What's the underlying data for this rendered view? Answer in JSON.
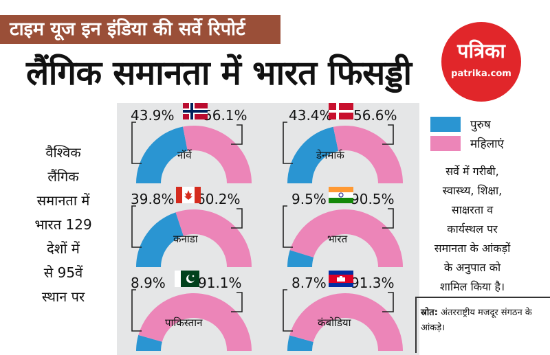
{
  "banner": "टाइम यूज इन इंडिया की सर्वे रिपोर्ट",
  "headline": "लैंगिक समानता में भारत फिसड्डी",
  "logo": {
    "name": "पत्रिका",
    "url": "patrika.com"
  },
  "left_text": [
    "वैश्विक",
    "लैंगिक",
    "समानता में",
    "भारत 129",
    "देशों में",
    "से 95वें",
    "स्थान पर"
  ],
  "legend": [
    {
      "label": "पुरुष",
      "color": "#2a95d2"
    },
    {
      "label": "महिलाएं",
      "color": "#ec85b8"
    }
  ],
  "note": [
    "सर्वे में गरीबी,",
    "स्वास्थ्य, शिक्षा,",
    "साक्षरता व",
    "कार्यस्थल पर",
    "समानता के आंकड़ों",
    "के अनुपात को",
    "शामिल किया है।"
  ],
  "source": {
    "label": "स्रोत:",
    "text": "अंतरराष्ट्रीय मजदूर संगठन के आंकड़े।"
  },
  "colors": {
    "male": "#2a95d2",
    "female": "#ec85b8",
    "banner": "#9a4f38",
    "logo": "#e1262a"
  },
  "chart_data": {
    "type": "pie",
    "title": "लैंगिक समानता में भारत फिसड्डी",
    "series_names": [
      "पुरुष",
      "महिलाएं"
    ],
    "countries": [
      {
        "name": "नॉर्वे",
        "flag": "norway-flag",
        "male": 43.9,
        "female": 56.1,
        "male_label": "43.9%",
        "female_label": "56.1%"
      },
      {
        "name": "डेनमार्क",
        "flag": "denmark-flag",
        "male": 43.4,
        "female": 56.6,
        "male_label": "43.4%",
        "female_label": "56.6%"
      },
      {
        "name": "कनाडा",
        "flag": "canada-flag",
        "male": 39.8,
        "female": 60.2,
        "male_label": "39.8%",
        "female_label": "60.2%"
      },
      {
        "name": "भारत",
        "flag": "india-flag",
        "male": 9.5,
        "female": 90.5,
        "male_label": "9.5%",
        "female_label": "90.5%"
      },
      {
        "name": "पाकिस्तान",
        "flag": "pakistan-flag",
        "male": 8.9,
        "female": 91.1,
        "male_label": "8.9%",
        "female_label": "91.1%"
      },
      {
        "name": "कंबोडिया",
        "flag": "cambodia-flag",
        "male": 8.7,
        "female": 91.3,
        "male_label": "8.7%",
        "female_label": "91.3%"
      }
    ]
  }
}
